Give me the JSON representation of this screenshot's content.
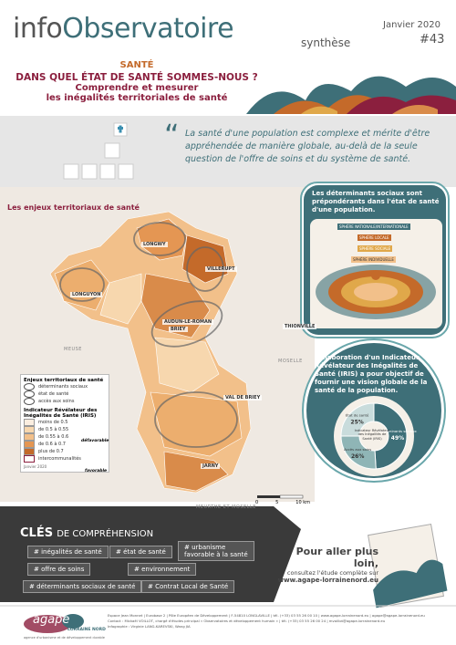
{
  "header": {
    "logo_prefix": "info",
    "logo_main": "Observatoire",
    "series": "synthèse",
    "date": "Janvier 2020",
    "issue": "#43"
  },
  "title": {
    "theme": "SANTÉ",
    "headline": "DANS QUEL ÉTAT DE SANTÉ SOMMES-NOUS ?",
    "subtitle_lines": [
      "Comprendre et mesurer",
      "les inégalités territoriales de santé"
    ]
  },
  "quote": "La santé d'une population est complexe et mérite d'être appréhendée de manière globale, au-delà de la seule question de l'offre de soins et du système de santé.",
  "map": {
    "title": "Les enjeux territoriaux de santé",
    "places": [
      "LONGWY",
      "VILLERUPT",
      "LONGUYON",
      "AUDUN-LE-ROMAN",
      "BRIEY",
      "THIONVILLE",
      "VAL DE BRIEY",
      "JARNY"
    ],
    "regions": [
      "MEUSE",
      "MOSELLE",
      "MEURTHE ET MOSELLE"
    ],
    "legend": {
      "title": "Enjeux territoriaux de santé",
      "issues": [
        "déterminants sociaux",
        "état de santé",
        "accès aux soins"
      ],
      "iris_title": "Indicateur Révélateur des Inégalités de Santé (IRIS)",
      "classes": [
        "moins de 0.5",
        "de 0.5 à 0.55",
        "de 0.55 à 0.6",
        "de 0.6 à 0.7",
        "plus de 0.7"
      ],
      "unfavorable": "défavorable",
      "favorable": "favorable",
      "boundaries": "intercommunalités",
      "date": "Janvier 2020"
    },
    "scale": [
      "0",
      "5",
      "10 km"
    ]
  },
  "social_determinants": {
    "text": "Les déterminants sociaux sont prépondérants dans l'état de santé d'une population.",
    "spheres": [
      "SPHÈRE NATIONALE/INTERNATIONALE",
      "SPHÈRE LOCALE",
      "SPHÈRE SOCIALE",
      "SPHÈRE INDIVIDUELLE"
    ]
  },
  "iris": {
    "text": "L'élaboration d'un Indicateur Révélateur des Inégalités de Santé (IRIS) a pour objectif de fournir une vision globale de la santé de la population.",
    "pie": {
      "type": "pie",
      "center_label": "Indicateur Révélateur des Inégalités de Santé (IRIS)",
      "names": [
        "Déterminants sociaux",
        "Accès aux soins",
        "État de santé"
      ],
      "values": [
        49,
        26,
        25
      ],
      "value_labels": [
        "49%",
        "26%",
        "25%"
      ],
      "colors": [
        "#3e6f78",
        "#8fb5b6",
        "#c9dcdc"
      ]
    }
  },
  "keys": {
    "title_bold": "CLÉS",
    "title_rest": "DE COMPRÉHENSION",
    "tags": [
      "# inégalités de santé",
      "# état de santé",
      "# urbanisme favorable à la santé",
      "# offre de soins",
      "# environnement",
      "# déterminants sociaux de santé",
      "# Contrat Local de Santé"
    ]
  },
  "further": {
    "lead": "Pour aller plus loin,",
    "text": "consultez l'étude complète sur",
    "url": "www.agape-lorrainenord.eu"
  },
  "footer": {
    "brand": "agape",
    "brand_sub": "LORRAINE NORD",
    "tagline": "agence d'urbanisme et de développement durable",
    "lines": [
      "Espace Jean Monnet | Eurobase 2 | Pôle Européen de Développement | F-54810 LONGLAVILLE | tél. (+33) 03 55 26 00 10 | www.agape-lorrainenord.eu | agape@agape-lorrainenord.eu",
      "Contact : Mickaël VOILLOT, chargé d'études principal « Observatoires et développement humain » | tél. (+33) 03 55 26 00 24 | mvoillot@agape-lorrainenord.eu",
      "Infographie : Virginie LANG-KAREVSKI, Wang JIA"
    ]
  }
}
